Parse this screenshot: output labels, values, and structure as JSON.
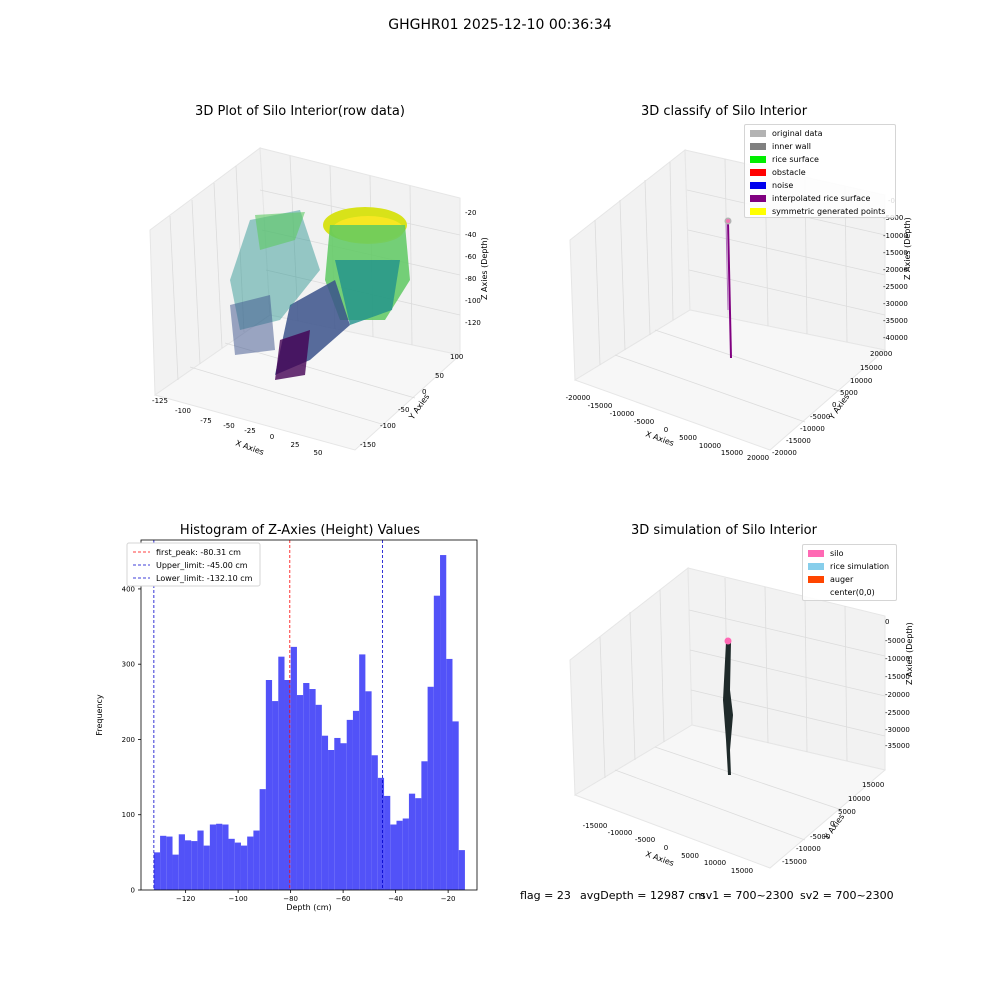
{
  "suptitle": "GHGHR01 2025-12-10 00:36:34",
  "panels": {
    "raw": {
      "title": "3D Plot of Silo Interior(row data)",
      "xlabel": "X Axies",
      "ylabel": "Y Axies",
      "zlabel": "Z Axies (Depth)",
      "x_ticks": [
        "-125",
        "-100",
        "-75",
        "-50",
        "-25",
        "0",
        "25",
        "50"
      ],
      "y_ticks": [
        "100",
        "50",
        "0",
        "-50",
        "-100",
        "-150"
      ],
      "z_ticks": [
        "-20",
        "-40",
        "-60",
        "-80",
        "-100",
        "-120"
      ],
      "colormap": [
        "#440154",
        "#3b528b",
        "#21918c",
        "#5ec962",
        "#fde725"
      ]
    },
    "classify": {
      "title": "3D classify of Silo Interior",
      "xlabel": "X Axies",
      "ylabel": "Y Axies",
      "zlabel": "Z Axies (Depth)",
      "x_ticks": [
        "-20000",
        "-15000",
        "-10000",
        "-5000",
        "0",
        "5000",
        "10000",
        "15000",
        "20000"
      ],
      "y_ticks": [
        "20000",
        "15000",
        "10000",
        "5000",
        "0",
        "-5000",
        "-10000",
        "-15000",
        "-20000"
      ],
      "z_ticks": [
        "-0",
        "-5000",
        "-10000",
        "-15000",
        "-20000",
        "-25000",
        "-30000",
        "-35000",
        "-40000"
      ],
      "legend": [
        {
          "label": "original data",
          "color": "#b3b3b3"
        },
        {
          "label": "inner wall",
          "color": "#808080"
        },
        {
          "label": "rice surface",
          "color": "#00ee00"
        },
        {
          "label": "obstacle",
          "color": "#ff0000"
        },
        {
          "label": "noise",
          "color": "#0000ee"
        },
        {
          "label": "interpolated rice surface",
          "color": "#800080"
        },
        {
          "label": "symmetric generated points",
          "color": "#ffff00"
        }
      ]
    },
    "simulation": {
      "title": "3D simulation of Silo Interior",
      "xlabel": "X Axies",
      "ylabel": "Y Axies",
      "zlabel": "Z Axies (Depth)",
      "x_ticks": [
        "-15000",
        "-10000",
        "-5000",
        "0",
        "5000",
        "10000",
        "15000"
      ],
      "y_ticks": [
        "15000",
        "10000",
        "5000",
        "0",
        "-5000",
        "-10000",
        "-15000"
      ],
      "z_ticks": [
        "0",
        "-5000",
        "-10000",
        "-15000",
        "-20000",
        "-25000",
        "-30000",
        "-35000"
      ],
      "legend": [
        {
          "label": "silo",
          "color": "#ff69b4"
        },
        {
          "label": "rice simulation",
          "color": "#87ceeb"
        },
        {
          "label": "auger",
          "color": "#ff4500"
        },
        {
          "label": "center(0,0)",
          "color": ""
        }
      ]
    },
    "status": {
      "flag": "flag = 23",
      "avg_depth": "avgDepth = 12987 cm",
      "sv1": "sv1 = 700~2300",
      "sv2": "sv2 = 700~2300"
    }
  },
  "chart_data": [
    {
      "type": "scatter",
      "title": "3D Plot of Silo Interior(row data)",
      "xlabel": "X Axies",
      "ylabel": "Y Axies",
      "zlabel": "Z Axies (Depth)",
      "xlim": [
        -140,
        60
      ],
      "ylim": [
        -160,
        110
      ],
      "zlim": [
        -130,
        -10
      ]
    },
    {
      "type": "scatter",
      "title": "3D classify of Silo Interior",
      "xlabel": "X Axies",
      "ylabel": "Y Axies",
      "zlabel": "Z Axies (Depth)",
      "xlim": [
        -20000,
        20000
      ],
      "ylim": [
        -20000,
        20000
      ],
      "zlim": [
        -42000,
        0
      ]
    },
    {
      "type": "bar",
      "title": "Histogram of Z-Axies (Height) Values",
      "xlabel": "Depth (cm)",
      "ylabel": "Frequency",
      "xlim": [
        -137,
        -9
      ],
      "ylim": [
        0,
        465
      ],
      "x_ticks": [
        -120,
        -100,
        -80,
        -60,
        -40,
        -20
      ],
      "y_ticks": [
        0,
        100,
        200,
        300,
        400
      ],
      "bin_start": -132.1,
      "bin_width": 2.37,
      "values": [
        50,
        72,
        71,
        47,
        74,
        66,
        65,
        79,
        59,
        87,
        88,
        87,
        68,
        63,
        59,
        71,
        79,
        134,
        279,
        251,
        310,
        279,
        323,
        259,
        275,
        267,
        246,
        205,
        186,
        202,
        195,
        226,
        238,
        313,
        264,
        179,
        149,
        125,
        87,
        92,
        95,
        128,
        122,
        171,
        270,
        391,
        445,
        307,
        224,
        53
      ],
      "bar_color": "#4f4ff8",
      "vlines": [
        {
          "label": "first_peak: -80.31 cm",
          "x": -80.31,
          "color": "#ff0000"
        },
        {
          "label": "Upper_limit: -45.00 cm",
          "x": -45.0,
          "color": "#0000cc"
        },
        {
          "label": "Lower_limit: -132.10 cm",
          "x": -132.1,
          "color": "#0000cc"
        }
      ]
    },
    {
      "type": "scatter",
      "title": "3D simulation of Silo Interior",
      "xlabel": "X Axies",
      "ylabel": "Y Axies",
      "zlabel": "Z Axies (Depth)",
      "xlim": [
        -17000,
        17000
      ],
      "ylim": [
        -17000,
        17000
      ],
      "zlim": [
        -38000,
        0
      ]
    }
  ]
}
